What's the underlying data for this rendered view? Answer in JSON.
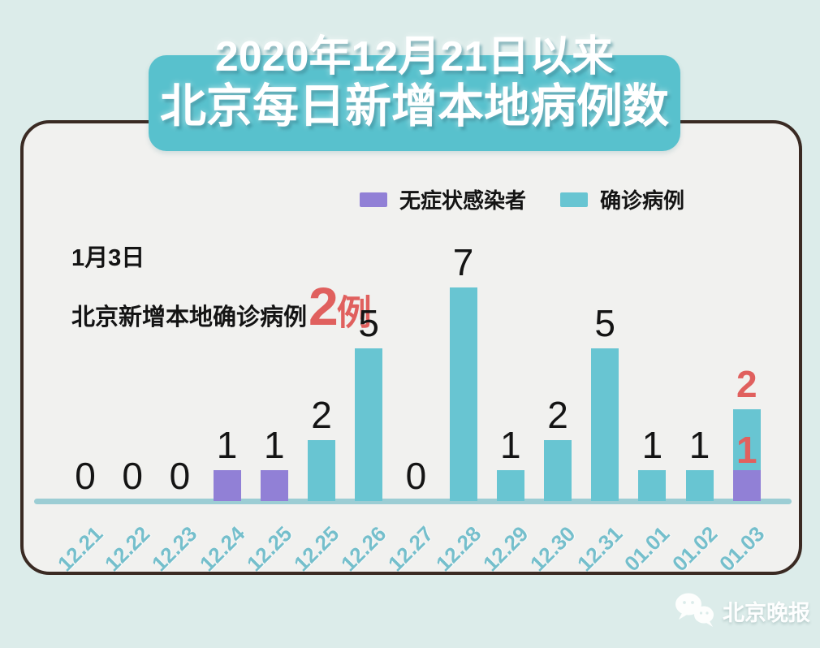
{
  "title": {
    "line1": "2020年12月21日以来",
    "line2": "北京每日新增本地病例数"
  },
  "legend": [
    {
      "label": "无症状感染者",
      "color": "#9180d6"
    },
    {
      "label": "确诊病例",
      "color": "#68c5d2"
    }
  ],
  "annotation": {
    "date": "1月3日",
    "text": "北京新增本地确诊病例",
    "highlight_value": "2",
    "highlight_unit": "例",
    "highlight_color": "#e0605e"
  },
  "watermark": {
    "name": "北京晚报"
  },
  "colors": {
    "background": "#dcecea",
    "card_fill": "#f1f1ef",
    "card_border": "#3a2a23",
    "banner": "#58c1cd",
    "baseline": "#9ccdd4",
    "axis_label": "#75bfcc",
    "value_label": "#141414",
    "highlight": "#e0605e"
  },
  "chart_data": {
    "type": "bar",
    "stacked": true,
    "grid": false,
    "legend_position": "top",
    "ylim": [
      0,
      7.5
    ],
    "categories": [
      "12.21",
      "12.22",
      "12.23",
      "12.24",
      "12.25",
      "12.25",
      "12.26",
      "12.27",
      "12.28",
      "12.29",
      "12.30",
      "12.31",
      "01.01",
      "01.02",
      "01.03"
    ],
    "series": [
      {
        "name": "无症状感染者",
        "color": "#9180d6",
        "values": [
          0,
          0,
          0,
          1,
          1,
          0,
          0,
          0,
          0,
          0,
          0,
          0,
          0,
          0,
          1
        ]
      },
      {
        "name": "确诊病例",
        "color": "#68c5d2",
        "values": [
          0,
          0,
          0,
          0,
          0,
          2,
          5,
          0,
          7,
          1,
          2,
          5,
          1,
          1,
          2
        ]
      }
    ],
    "bar_labels": [
      [
        {
          "text": "0",
          "color": "#141414",
          "pos": "above",
          "bold": false
        }
      ],
      [
        {
          "text": "0",
          "color": "#141414",
          "pos": "above",
          "bold": false
        }
      ],
      [
        {
          "text": "0",
          "color": "#141414",
          "pos": "above",
          "bold": false
        }
      ],
      [
        {
          "text": "1",
          "color": "#141414",
          "pos": "above",
          "bold": false
        }
      ],
      [
        {
          "text": "1",
          "color": "#141414",
          "pos": "above",
          "bold": false
        }
      ],
      [
        {
          "text": "2",
          "color": "#141414",
          "pos": "above",
          "bold": false
        }
      ],
      [
        {
          "text": "5",
          "color": "#141414",
          "pos": "above",
          "bold": false
        }
      ],
      [
        {
          "text": "0",
          "color": "#141414",
          "pos": "above",
          "bold": false
        }
      ],
      [
        {
          "text": "7",
          "color": "#141414",
          "pos": "above",
          "bold": false
        }
      ],
      [
        {
          "text": "1",
          "color": "#141414",
          "pos": "above",
          "bold": false
        }
      ],
      [
        {
          "text": "2",
          "color": "#141414",
          "pos": "above",
          "bold": false
        }
      ],
      [
        {
          "text": "5",
          "color": "#141414",
          "pos": "above",
          "bold": false
        }
      ],
      [
        {
          "text": "1",
          "color": "#141414",
          "pos": "above",
          "bold": false
        }
      ],
      [
        {
          "text": "1",
          "color": "#141414",
          "pos": "above",
          "bold": false
        }
      ],
      [
        {
          "text": "2",
          "color": "#e0605e",
          "pos": "above",
          "bold": true
        },
        {
          "text": "1",
          "color": "#e0605e",
          "pos": "inside",
          "bold": true
        }
      ]
    ]
  }
}
